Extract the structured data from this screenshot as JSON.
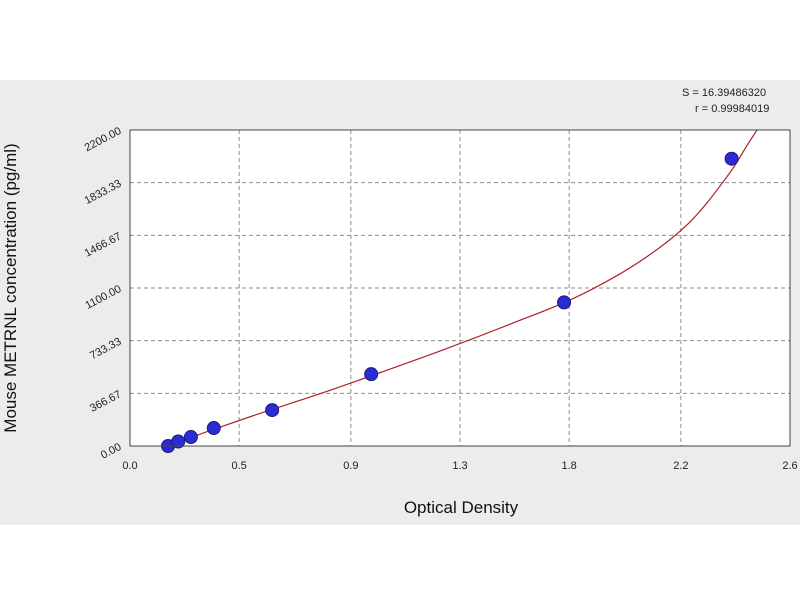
{
  "chart_data": {
    "type": "scatter",
    "title": "",
    "xlabel": "Optical Density",
    "ylabel": "Mouse METRNL concentration (pg/ml)",
    "xlim": [
      0.0,
      2.6
    ],
    "ylim": [
      0,
      2200
    ],
    "x_ticks": [
      "0.0",
      "0.5",
      "0.9",
      "1.3",
      "1.8",
      "2.2",
      "2.6"
    ],
    "x_tick_values": [
      0.0,
      0.43,
      0.87,
      1.3,
      1.73,
      2.17,
      2.6
    ],
    "y_ticks": [
      "0.00",
      "366.67",
      "733.33",
      "1100.00",
      "1466.67",
      "1833.33",
      "2200.00"
    ],
    "y_tick_values": [
      0,
      366.67,
      733.33,
      1100,
      1466.67,
      1833.33,
      2200
    ],
    "grid": true,
    "legend": "none",
    "stats": [
      "S = 16.39486320",
      "r = 0.99984019"
    ],
    "series": [
      {
        "points": [
          {
            "x": 0.15,
            "y": 0
          },
          {
            "x": 0.19,
            "y": 31.25
          },
          {
            "x": 0.24,
            "y": 62.5
          },
          {
            "x": 0.33,
            "y": 125
          },
          {
            "x": 0.56,
            "y": 250
          },
          {
            "x": 0.95,
            "y": 500
          },
          {
            "x": 1.71,
            "y": 1000
          },
          {
            "x": 2.37,
            "y": 2000
          }
        ]
      }
    ],
    "fit_curve_samples": [
      {
        "x": 0.15,
        "y": 0
      },
      {
        "x": 0.3,
        "y": 98
      },
      {
        "x": 0.5,
        "y": 220
      },
      {
        "x": 0.75,
        "y": 365
      },
      {
        "x": 1.0,
        "y": 520
      },
      {
        "x": 1.25,
        "y": 680
      },
      {
        "x": 1.5,
        "y": 850
      },
      {
        "x": 1.75,
        "y": 1030
      },
      {
        "x": 2.0,
        "y": 1275
      },
      {
        "x": 2.2,
        "y": 1550
      },
      {
        "x": 2.35,
        "y": 1870
      },
      {
        "x": 2.43,
        "y": 2090
      },
      {
        "x": 2.47,
        "y": 2200
      }
    ],
    "colors": {
      "marker_fill": "#2b2bd6",
      "marker_stroke": "#1a1a7a",
      "curve": "#b0202a",
      "grid": "#8c8c8c",
      "plot_bg": "#ffffff",
      "band_bg": "#ececec"
    }
  }
}
